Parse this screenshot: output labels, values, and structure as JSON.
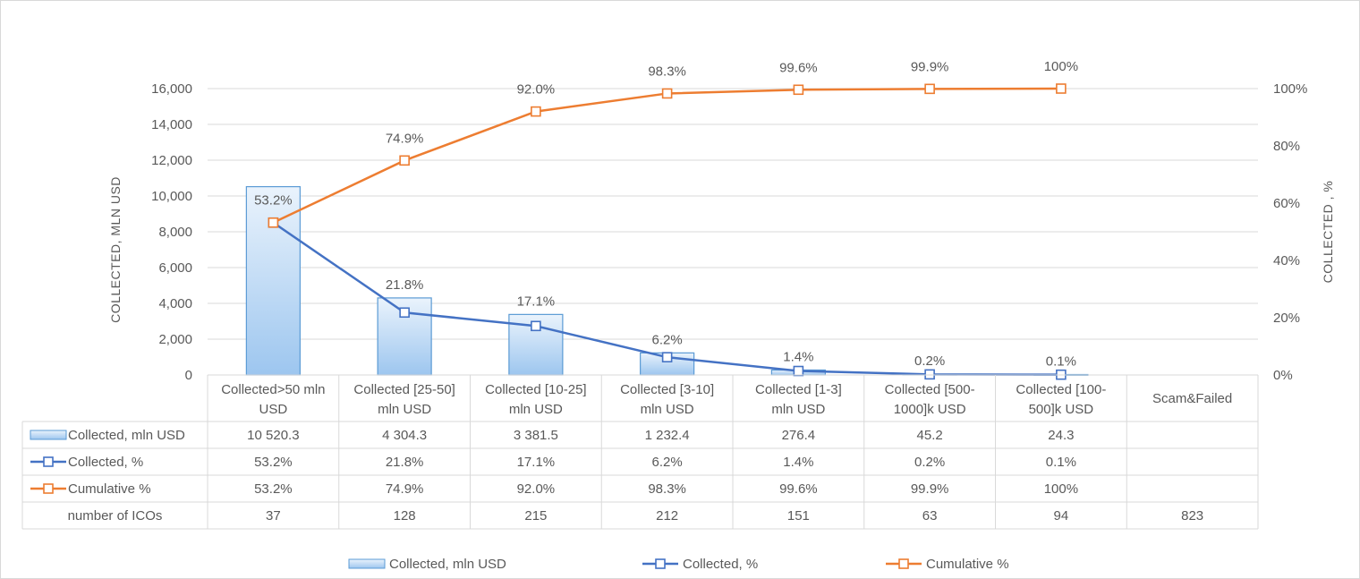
{
  "chart_data": {
    "type": "bar",
    "categories": [
      [
        "Collected>50 mln",
        "USD"
      ],
      [
        "Collected [25-50]",
        "mln USD"
      ],
      [
        "Collected [10-25]",
        "mln USD"
      ],
      [
        "Collected [3-10]",
        "mln USD"
      ],
      [
        "Collected [1-3]",
        "mln USD"
      ],
      [
        "Collected [500-",
        "1000]k USD"
      ],
      [
        "Collected [100-",
        "500]k USD"
      ],
      [
        "Scam&Failed"
      ]
    ],
    "ylabel": "COLLECTED, MLN USD",
    "y2label": "COLLECTED , %",
    "ylim": [
      0,
      16000
    ],
    "y2lim": [
      0,
      100
    ],
    "yticks": [
      "0",
      "2,000",
      "4,000",
      "6,000",
      "8,000",
      "10,000",
      "12,000",
      "14,000",
      "16,000"
    ],
    "y2ticks": [
      "0%",
      "20%",
      "40%",
      "60%",
      "80%",
      "100%"
    ],
    "grid": true,
    "legend_position": "bottom",
    "series": [
      {
        "name": "Collected, mln USD",
        "type": "bar",
        "values": [
          10520.3,
          4304.3,
          3381.5,
          1232.4,
          276.4,
          45.2,
          24.3,
          null
        ],
        "table_values": [
          "10 520.3",
          "4 304.3",
          "3 381.5",
          "1 232.4",
          "276.4",
          "45.2",
          "24.3",
          ""
        ],
        "color": "#5b9bd5"
      },
      {
        "name": "Collected, %",
        "type": "line",
        "axis": "right",
        "values": [
          53.2,
          21.8,
          17.1,
          6.2,
          1.4,
          0.2,
          0.1,
          null
        ],
        "labels": [
          "53.2%",
          "21.8%",
          "17.1%",
          "6.2%",
          "1.4%",
          "0.2%",
          "0.1%",
          ""
        ],
        "color": "#4472c4"
      },
      {
        "name": "Cumulative %",
        "type": "line",
        "axis": "right",
        "values": [
          53.2,
          74.9,
          92.0,
          98.3,
          99.6,
          99.9,
          100,
          null
        ],
        "labels": [
          "53.2%",
          "74.9%",
          "92.0%",
          "98.3%",
          "99.6%",
          "99.9%",
          "100%",
          ""
        ],
        "color": "#ed7d31"
      }
    ],
    "extra_row": {
      "name": "number of ICOs",
      "values": [
        "37",
        "128",
        "215",
        "212",
        "151",
        "63",
        "94",
        "823"
      ]
    }
  }
}
